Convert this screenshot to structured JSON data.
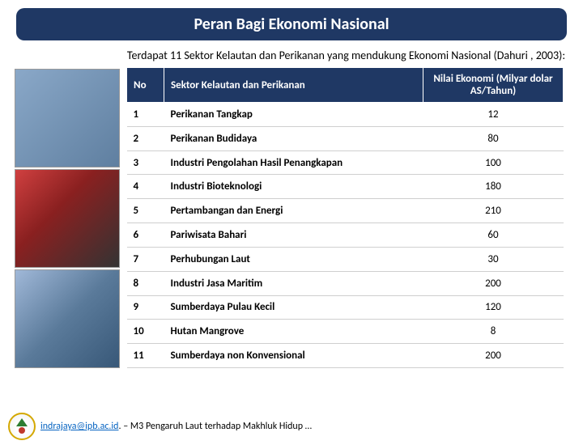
{
  "title": "Peran Bagi Ekonomi Nasional",
  "subtitle": "Terdapat 11 Sektor Kelautan dan  Perikanan yang mendukung Ekonomi Nasional (Dahuri , 2003):",
  "table": {
    "headers": {
      "no": "No",
      "sector": "Sektor Kelautan dan Perikanan",
      "value": "Nilai Ekonomi (Milyar dolar AS/Tahun)"
    },
    "rows": [
      {
        "no": "1",
        "sector": "Perikanan Tangkap",
        "value": "12"
      },
      {
        "no": "2",
        "sector": "Perikanan Budidaya",
        "value": "80"
      },
      {
        "no": "3",
        "sector": "Industri Pengolahan Hasil Penangkapan",
        "value": "100"
      },
      {
        "no": "4",
        "sector": "Industri Bioteknologi",
        "value": "180"
      },
      {
        "no": "5",
        "sector": "Pertambangan dan Energi",
        "value": "210"
      },
      {
        "no": "6",
        "sector": "Pariwisata Bahari",
        "value": "60"
      },
      {
        "no": "7",
        "sector": "Perhubungan  Laut",
        "value": "30"
      },
      {
        "no": "8",
        "sector": "Industri Jasa Maritim",
        "value": "200"
      },
      {
        "no": "9",
        "sector": "Sumberdaya Pulau Kecil",
        "value": "120"
      },
      {
        "no": "10",
        "sector": "Hutan Mangrove",
        "value": "8"
      },
      {
        "no": "11",
        "sector": "Sumberdaya non Konvensional",
        "value": "200"
      }
    ]
  },
  "footer": {
    "email": "indrajaya@ipb.ac.id",
    "rest": ". – M3 Pengaruh Laut terhadap Makhluk Hidup …"
  },
  "colors": {
    "header_bg": "#1f3864",
    "header_text": "#ffffff",
    "row_border": "#cfcfcf",
    "link": "#0563c1"
  }
}
